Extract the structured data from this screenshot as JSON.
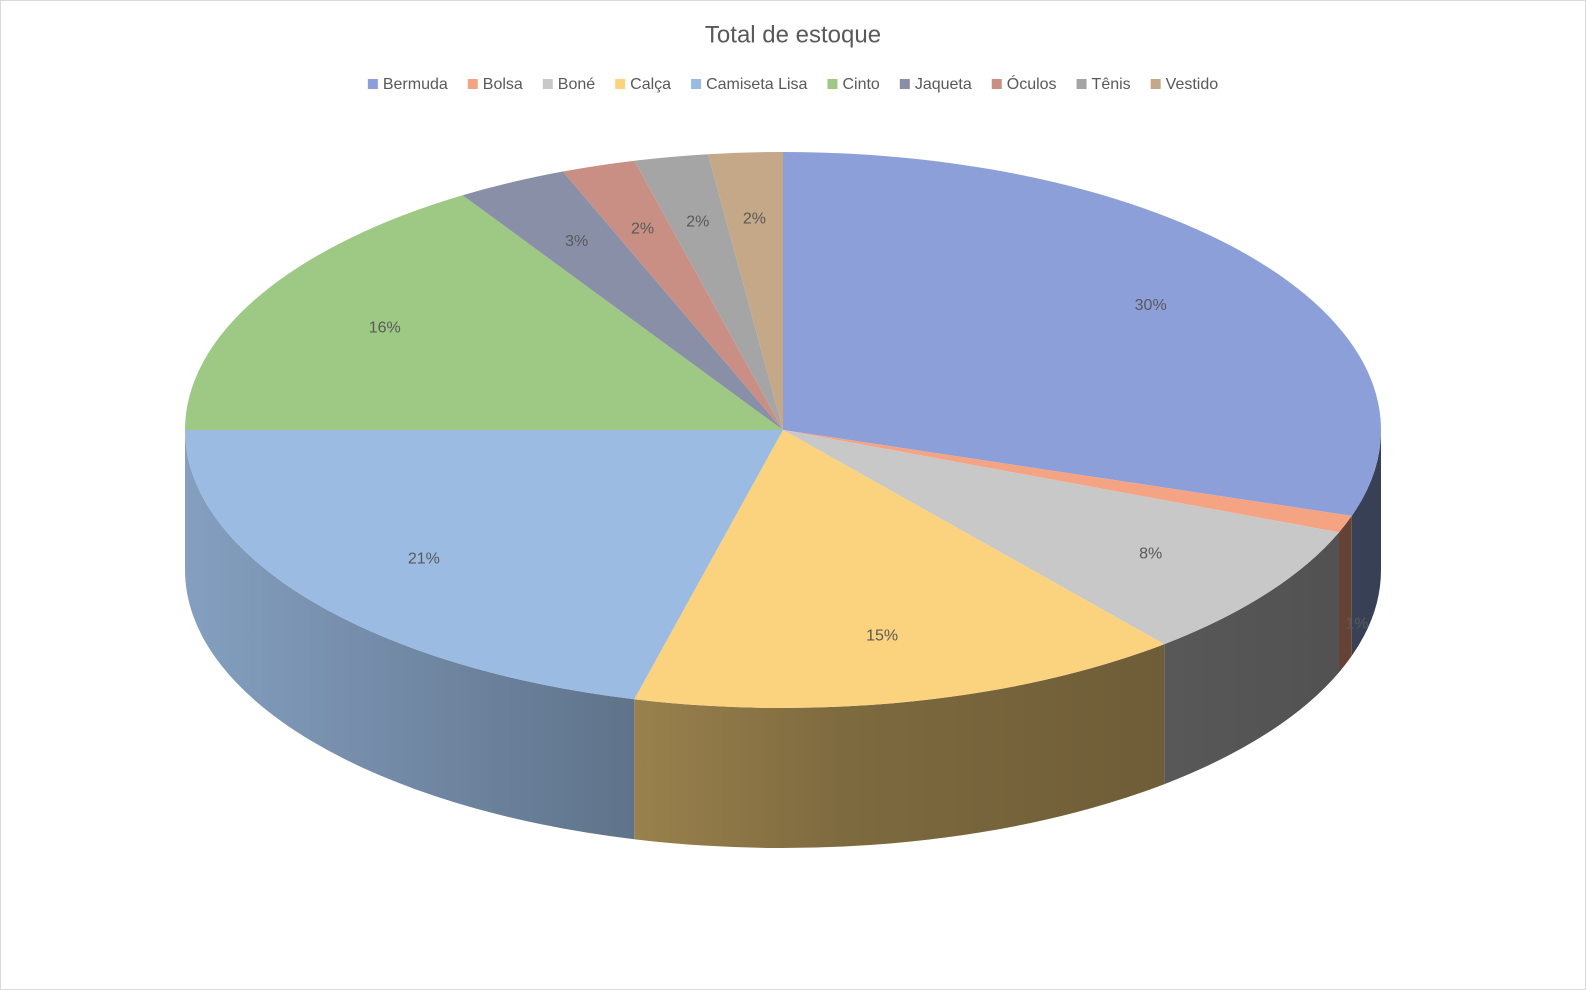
{
  "chart_data": {
    "type": "pie3d",
    "title": "Total de estoque",
    "categories": [
      "Bermuda",
      "Bolsa",
      "Boné",
      "Calça",
      "Camiseta Lisa",
      "Cinto",
      "Jaqueta",
      "Óculos",
      "Tênis",
      "Vestido"
    ],
    "values": [
      30,
      1,
      8,
      15,
      21,
      16,
      3,
      2,
      2,
      2
    ],
    "value_labels": [
      "30%",
      "1%",
      "8%",
      "15%",
      "21%",
      "16%",
      "3%",
      "2%",
      "2%",
      "2%"
    ],
    "colors": [
      "#8d9fd8",
      "#f4a482",
      "#c8c8c8",
      "#fbd37e",
      "#9bbbe2",
      "#9ec985",
      "#8a8fa8",
      "#c98f84",
      "#a5a5a5",
      "#c4a888"
    ],
    "legend": "top"
  }
}
